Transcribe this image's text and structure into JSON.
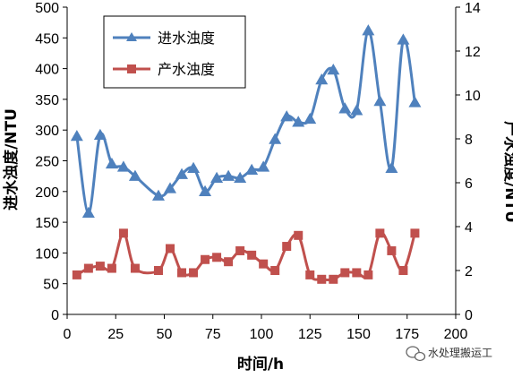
{
  "chart_data": {
    "type": "line",
    "xlabel": "时间/h",
    "ylabel_left": "进水浊度/NTU",
    "ylabel_right": "产水浊度/NTU",
    "xlim": [
      0,
      200
    ],
    "ylim_left": [
      0,
      500
    ],
    "ylim_right": [
      0,
      14
    ],
    "x_ticks": [
      "0",
      "25",
      "50",
      "75",
      "100",
      "125",
      "150",
      "175",
      "200"
    ],
    "y_left_ticks": [
      "0",
      "50",
      "100",
      "150",
      "200",
      "250",
      "300",
      "350",
      "400",
      "450",
      "500"
    ],
    "y_right_ticks": [
      "0",
      "2",
      "4",
      "6",
      "8",
      "10",
      "12",
      "14"
    ],
    "legend_position": "top-left",
    "grid": false,
    "series": [
      {
        "name": "进水浊度",
        "axis": "left",
        "color": "#4f81bd",
        "marker": "triangle",
        "x": [
          5,
          11,
          17,
          23,
          29,
          35,
          47,
          53,
          59,
          65,
          71,
          77,
          83,
          89,
          95,
          101,
          107,
          113,
          119,
          125,
          131,
          137,
          143,
          149,
          155,
          161,
          167,
          173,
          179
        ],
        "y": [
          290,
          165,
          292,
          245,
          240,
          225,
          193,
          205,
          228,
          238,
          200,
          222,
          225,
          222,
          235,
          240,
          285,
          322,
          313,
          318,
          382,
          398,
          335,
          332,
          462,
          347,
          238,
          447,
          345
        ]
      },
      {
        "name": "产水浊度",
        "axis": "right",
        "color": "#c0504d",
        "marker": "square",
        "x": [
          5,
          11,
          17,
          23,
          29,
          35,
          47,
          53,
          59,
          65,
          71,
          77,
          83,
          89,
          95,
          101,
          107,
          113,
          119,
          125,
          131,
          137,
          143,
          149,
          155,
          161,
          167,
          173,
          179
        ],
        "y": [
          1.8,
          2.1,
          2.2,
          2.1,
          3.7,
          2.1,
          2.0,
          3.0,
          1.9,
          1.9,
          2.5,
          2.6,
          2.4,
          2.9,
          2.7,
          2.3,
          2.0,
          3.1,
          3.6,
          1.8,
          1.6,
          1.6,
          1.9,
          1.9,
          1.8,
          3.7,
          2.9,
          2.0,
          3.7
        ]
      }
    ]
  },
  "watermark": {
    "text": "水处理搬运工",
    "icon": "wechat-icon"
  }
}
